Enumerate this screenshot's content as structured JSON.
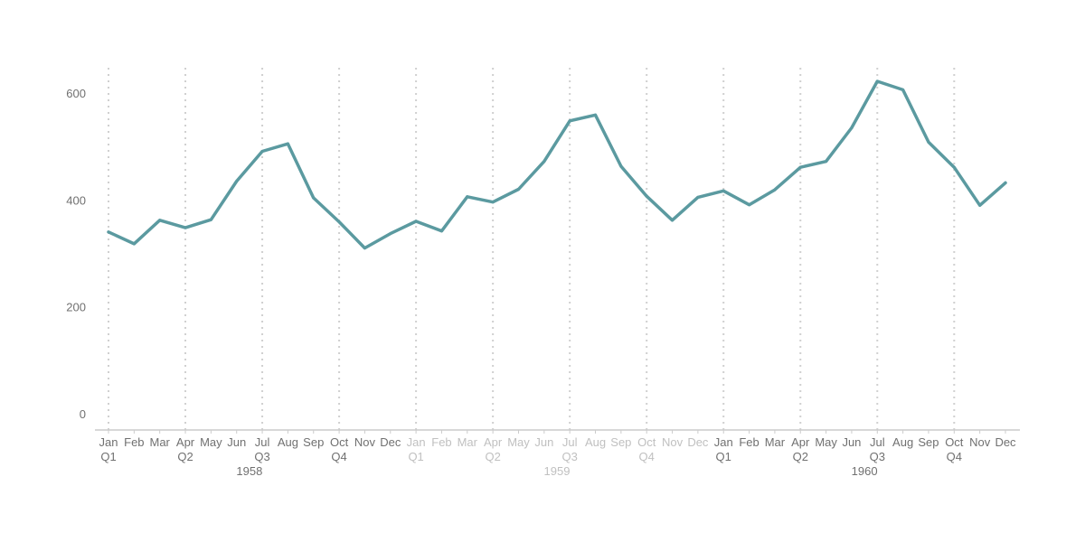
{
  "chart_data": {
    "type": "line",
    "x": [
      "1958-01",
      "1958-02",
      "1958-03",
      "1958-04",
      "1958-05",
      "1958-06",
      "1958-07",
      "1958-08",
      "1958-09",
      "1958-10",
      "1958-11",
      "1958-12",
      "1959-01",
      "1959-02",
      "1959-03",
      "1959-04",
      "1959-05",
      "1959-06",
      "1959-07",
      "1959-08",
      "1959-09",
      "1959-10",
      "1959-11",
      "1959-12",
      "1960-01",
      "1960-02",
      "1960-03",
      "1960-04",
      "1960-05",
      "1960-06",
      "1960-07",
      "1960-08",
      "1960-09",
      "1960-10",
      "1960-11",
      "1960-12"
    ],
    "series": [
      {
        "values": [
          340,
          318,
          362,
          348,
          363,
          435,
          491,
          505,
          404,
          359,
          310,
          337,
          360,
          342,
          406,
          396,
          420,
          472,
          548,
          559,
          463,
          407,
          362,
          405,
          417,
          391,
          419,
          461,
          472,
          535,
          622,
          606,
          508,
          461,
          390,
          432
        ]
      }
    ],
    "ylim": [
      0,
      650
    ],
    "yticks": [
      0,
      200,
      400,
      600
    ],
    "month_labels": [
      "Jan",
      "Feb",
      "Mar",
      "Apr",
      "May",
      "Jun",
      "Jul",
      "Aug",
      "Sep",
      "Oct",
      "Nov",
      "Dec"
    ],
    "quarter_labels": [
      "Q1",
      "Q2",
      "Q3",
      "Q4"
    ],
    "years": [
      {
        "label": "1958",
        "highlight": false
      },
      {
        "label": "1959",
        "highlight": true
      },
      {
        "label": "1960",
        "highlight": false
      }
    ],
    "grid": "vertical-dotted-at-quarters",
    "colors": {
      "line": "#5b9aa0",
      "text": "#707070",
      "text_muted": "#c0c0c0",
      "grid": "#d0d0d0",
      "axis": "#cccccc"
    }
  }
}
